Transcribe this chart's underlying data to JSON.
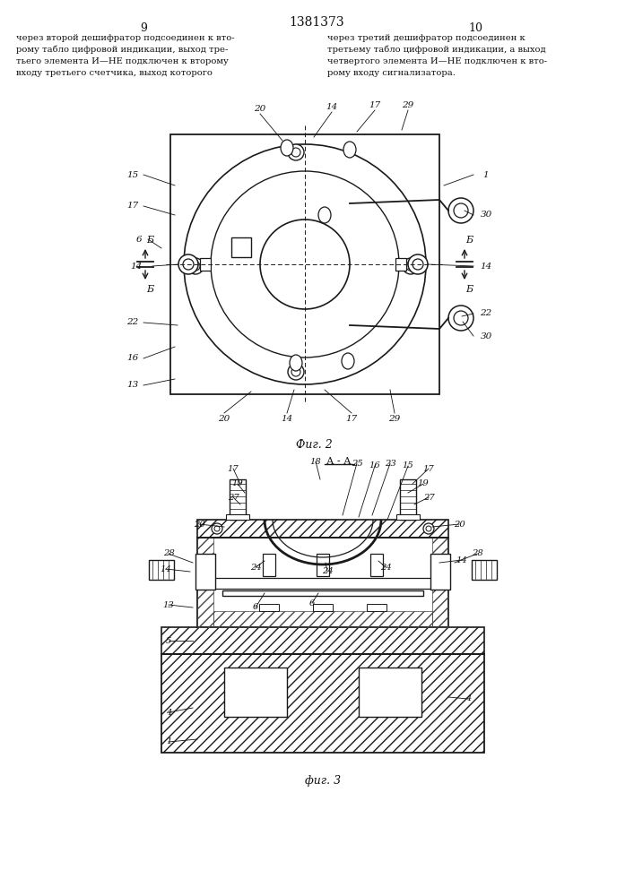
{
  "page_title": "1381373",
  "page_left": "9",
  "page_right": "10",
  "text_left": "через второй дешифратор подсоединен к вто-\nрому табло цифровой индикации, выход тре-\nтьего элемента И—НЕ подключен к второму\nвходу третьего счетчика, выход которого",
  "text_right": "через третий дешифратор подсоединен к\nтретьему табло цифровой индикации, а выход\nчетвертого элемента И—НЕ подключен к вто-\nрому входу сигнализатора.",
  "fig2_caption": "Фиг. 2",
  "fig3_caption": "фиг. 3",
  "bg_color": "#ffffff",
  "line_color": "#1a1a1a",
  "hatch_color": "#444444",
  "text_color": "#111111"
}
